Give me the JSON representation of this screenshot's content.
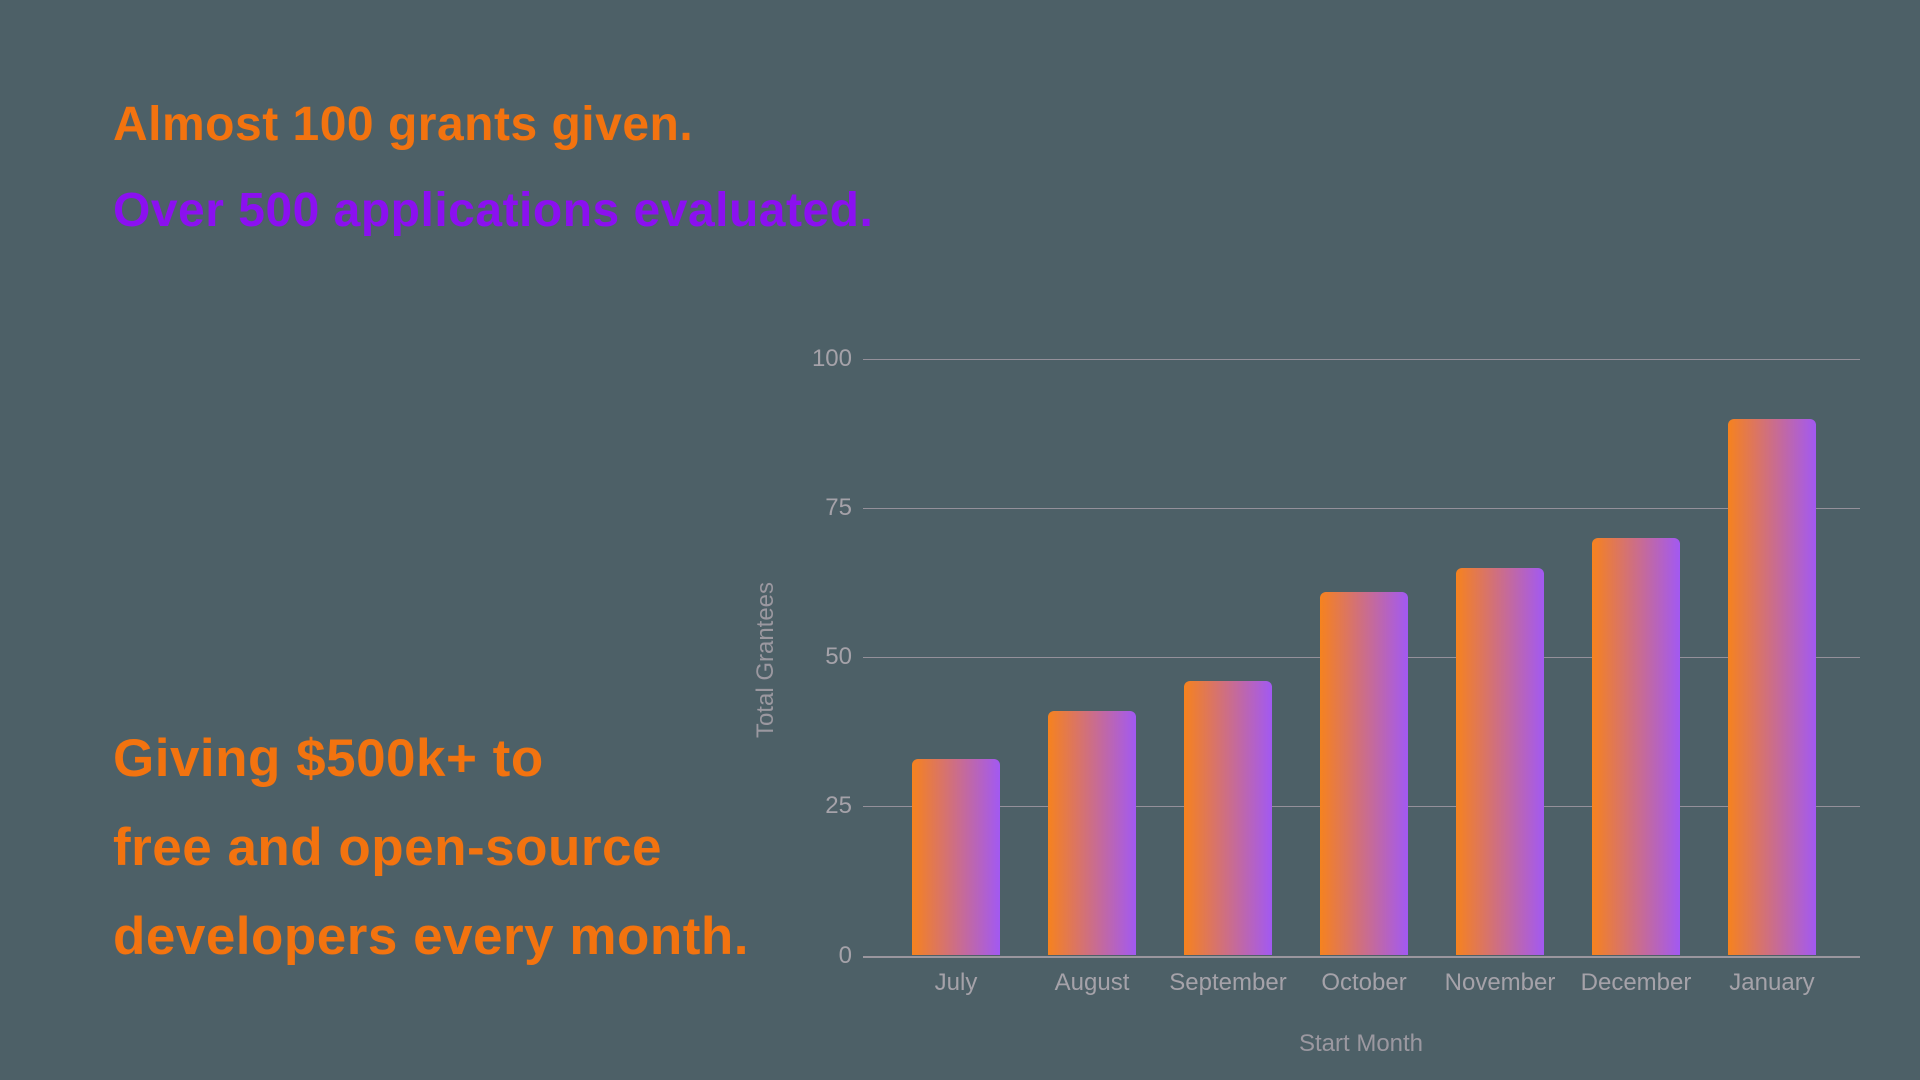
{
  "headline": {
    "line1": "Almost 100 grants given.",
    "line2": "Over 500 applications evaluated."
  },
  "message": {
    "line1": "Giving $500k+ to",
    "line2": "free and open-source",
    "line3": "developers every month."
  },
  "colors": {
    "background": "#4D6067",
    "orange_text": "#F3730F",
    "purple_text": "#8B10F0",
    "bar_gradient_start": "#F6821E",
    "bar_gradient_end": "#A259F2",
    "gridline": "#94909A",
    "axis_line": "#9A969E",
    "tick_label": "#A5A2A9",
    "axis_title": "#9B98A0"
  },
  "chart_data": {
    "type": "bar",
    "title": "",
    "categories": [
      "July",
      "August",
      "September",
      "October",
      "November",
      "December",
      "January"
    ],
    "values": [
      33,
      41,
      46,
      61,
      65,
      70,
      90
    ],
    "xlabel": "Start Month",
    "ylabel": "Total Grantees",
    "ylim": [
      0,
      100
    ],
    "yticks": [
      0,
      25,
      50,
      75,
      100
    ],
    "grid": true,
    "legend": false,
    "bar_orientation": "vertical",
    "bar_gradient_direction": "left-orange-to-right-purple"
  }
}
